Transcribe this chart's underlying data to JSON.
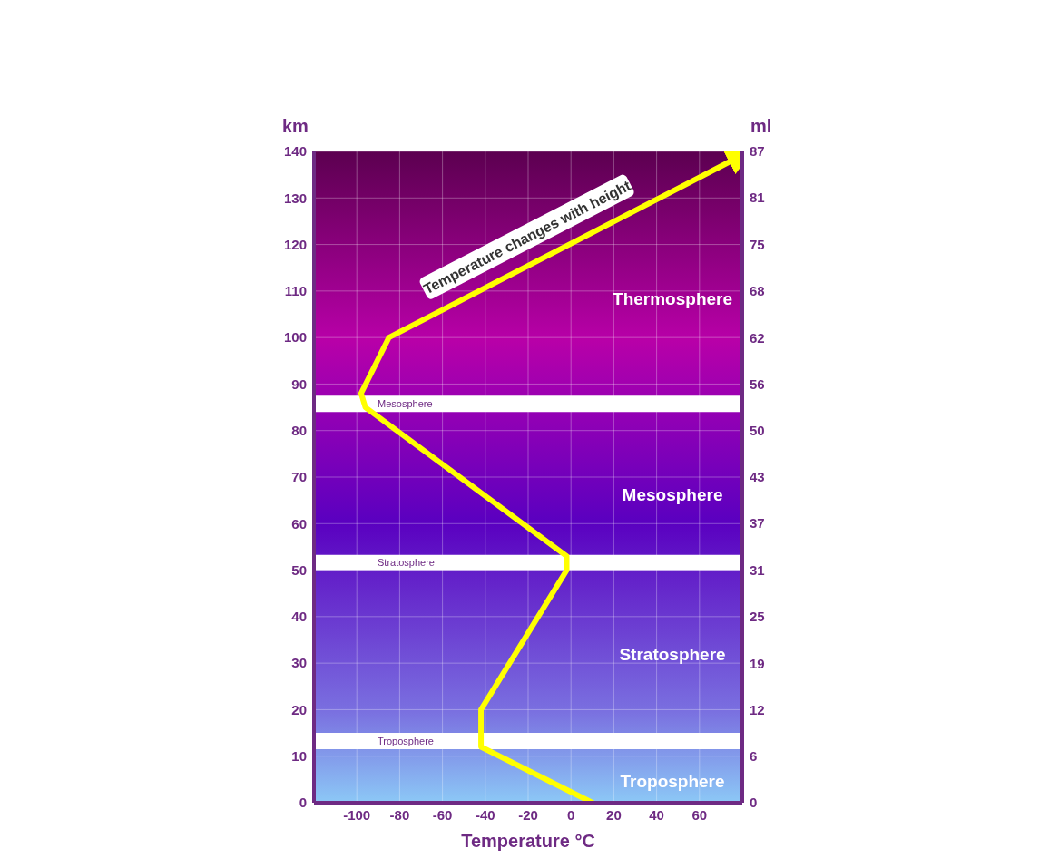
{
  "chart_data": {
    "type": "line",
    "xlabel": "Temperature °C",
    "ylabel": "km",
    "y2label": "ml",
    "series": [
      {
        "color": "#ffff00",
        "x": [
          10,
          -42,
          -42,
          -2,
          -2,
          -96,
          -98,
          -85,
          75
        ],
        "values": [
          0,
          12,
          20,
          50,
          53,
          85,
          88,
          100,
          138
        ]
      }
    ],
    "xlim": [
      -120,
      80
    ],
    "xticks": [
      -100,
      -80,
      -60,
      -40,
      -20,
      0,
      20,
      40,
      60
    ],
    "ylim": [
      0,
      140
    ],
    "yticks": [
      0,
      10,
      20,
      30,
      40,
      50,
      60,
      70,
      80,
      90,
      100,
      110,
      120,
      130,
      140
    ],
    "y2lim": [
      0,
      87
    ],
    "y2ticks": [
      0,
      {
        "value": 6.2,
        "label": "6"
      },
      {
        "value": 12.4,
        "label": "12"
      },
      {
        "value": 18.6,
        "label": "19"
      },
      {
        "value": 24.9,
        "label": "25"
      },
      {
        "value": 31.1,
        "label": "31"
      },
      {
        "value": 37.3,
        "label": "37"
      },
      {
        "value": 43.5,
        "label": "43"
      },
      {
        "value": 49.7,
        "label": "50"
      },
      {
        "value": 55.9,
        "label": "56"
      },
      {
        "value": 62.1,
        "label": "62"
      },
      {
        "value": 68.4,
        "label": "68"
      },
      {
        "value": 74.6,
        "label": "75"
      },
      {
        "value": 80.8,
        "label": "81"
      },
      87
    ],
    "bands": [
      {
        "axis": "y",
        "from": 84,
        "to": 87.5,
        "label": "Mesosphere",
        "color": "#ffffff"
      },
      {
        "axis": "y",
        "from": 50,
        "to": 53.3,
        "label": "Stratosphere",
        "color": "#ffffff"
      },
      {
        "axis": "y",
        "from": 11.5,
        "to": 15,
        "label": "Troposphere",
        "color": "#ffffff"
      }
    ],
    "annotations": [
      "Temperature changes with height",
      "Thermosphere",
      "Mesosphere",
      "Stratosphere",
      "Troposphere"
    ],
    "grid": true
  }
}
